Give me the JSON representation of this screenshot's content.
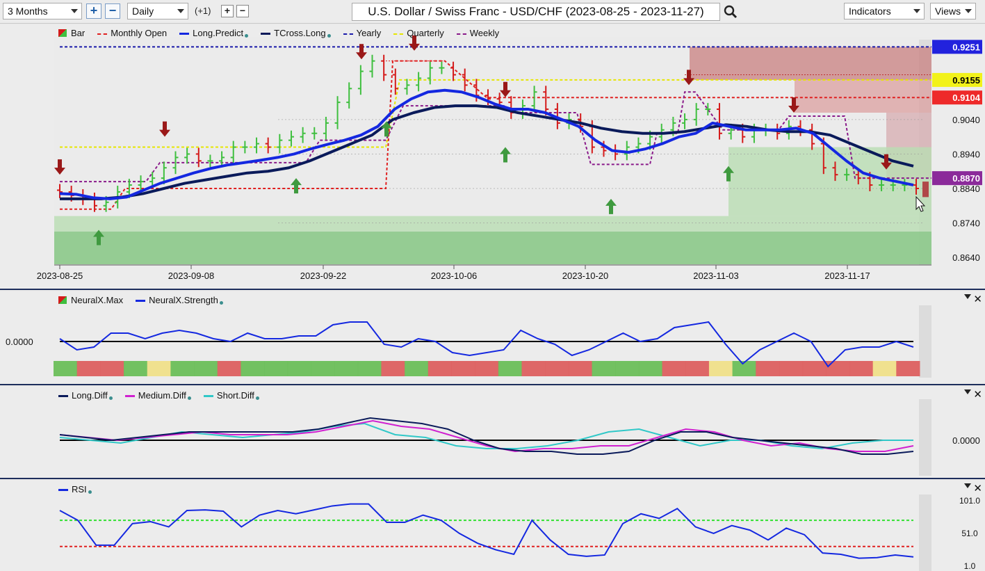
{
  "toolbar": {
    "period": "3 Months",
    "interval": "Daily",
    "step": "(+1)",
    "title": "U.S. Dollar / Swiss Franc - USD/CHF (2023-08-25 - 2023-11-27)",
    "indicators": "Indicators",
    "views": "Views"
  },
  "colors": {
    "up_bar": "#3fbf3f",
    "down_bar": "#d41a1a",
    "long_predict": "#1428e0",
    "tcross_long": "#0a1a5a",
    "yearly": "#1a1aaa",
    "quarterly": "#e6e600",
    "weekly": "#8a1a8a",
    "monthly_open": "#e02020"
  },
  "price_panel": {
    "legend": [
      {
        "label": "Bar",
        "icon": "bar-icon"
      },
      {
        "label": "Monthly Open",
        "style": "dashed",
        "color": "#e02020"
      },
      {
        "label": "Long.Predict",
        "style": "solid",
        "color": "#1428e0",
        "dot": true
      },
      {
        "label": "TCross.Long",
        "style": "solid",
        "color": "#0a1a5a",
        "dot": true
      },
      {
        "label": "Yearly",
        "style": "dashed",
        "color": "#1a1aaa"
      },
      {
        "label": "Quarterly",
        "style": "dashed",
        "color": "#e6e600"
      },
      {
        "label": "Weekly",
        "style": "dashed",
        "color": "#8a1a8a"
      }
    ],
    "y_ticks": [
      "0.9040",
      "0.8940",
      "0.8840",
      "0.8740",
      "0.8640"
    ],
    "x_ticks": [
      "2023-08-25",
      "2023-09-08",
      "2023-09-22",
      "2023-10-06",
      "2023-10-20",
      "2023-11-03",
      "2023-11-17"
    ],
    "price_labels": [
      {
        "value": "0.9251",
        "color": "#2222dd",
        "text_color": "#ffffff"
      },
      {
        "value": "0.9155",
        "color": "#f2f21a",
        "text_color": "#000000"
      },
      {
        "value": "0.9104",
        "color": "#ee2a2a",
        "text_color": "#ffffff"
      },
      {
        "value": "0.8870",
        "color": "#8b2a9a",
        "text_color": "#ffffff"
      }
    ]
  },
  "neurax_panel": {
    "legend": [
      {
        "label": "NeuralX.Max",
        "icon": "neuralx-max-icon"
      },
      {
        "label": "NeuralX.Strength",
        "color": "#1428e0",
        "dot": true
      }
    ],
    "zero_label": "0.0000"
  },
  "diff_panel": {
    "legend": [
      {
        "label": "Long.Diff",
        "color": "#0a1a5a",
        "dot": true
      },
      {
        "label": "Medium.Diff",
        "color": "#d020d0",
        "dot": true
      },
      {
        "label": "Short.Diff",
        "color": "#30c8c8",
        "dot": true
      }
    ],
    "zero_label": "0.0000"
  },
  "rsi_panel": {
    "legend": [
      {
        "label": "RSI",
        "color": "#1428e0",
        "dot": true
      }
    ],
    "y_ticks": [
      "101.0",
      "51.0",
      "1.0"
    ]
  },
  "chart_data": [
    {
      "type": "bar",
      "title": "U.S. Dollar / Swiss Franc - USD/CHF (2023-08-25 - 2023-11-27)",
      "x_start": "2023-08-25",
      "x_end": "2023-11-27",
      "ylim": [
        0.862,
        0.928
      ],
      "y_ticks": [
        0.904,
        0.894,
        0.884,
        0.874,
        0.864
      ],
      "levels": {
        "yearly": 0.9251,
        "quarterly": 0.9155,
        "monthly_open": 0.9104,
        "weekly": 0.887
      },
      "closes": [
        0.883,
        0.882,
        0.881,
        0.879,
        0.88,
        0.883,
        0.885,
        0.886,
        0.887,
        0.89,
        0.893,
        0.894,
        0.892,
        0.892,
        0.893,
        0.896,
        0.896,
        0.897,
        0.896,
        0.898,
        0.899,
        0.9,
        0.9,
        0.903,
        0.909,
        0.913,
        0.918,
        0.921,
        0.917,
        0.913,
        0.914,
        0.916,
        0.919,
        0.919,
        0.917,
        0.914,
        0.911,
        0.91,
        0.909,
        0.906,
        0.908,
        0.912,
        0.907,
        0.903,
        0.904,
        0.902,
        0.896,
        0.895,
        0.894,
        0.896,
        0.897,
        0.899,
        0.901,
        0.903,
        0.904,
        0.907,
        0.907,
        0.9,
        0.901,
        0.899,
        0.901,
        0.901,
        0.9,
        0.902,
        0.901,
        0.897,
        0.89,
        0.888,
        0.888,
        0.887,
        0.885,
        0.885,
        0.885,
        0.885,
        0.884
      ],
      "series": [
        {
          "name": "Long.Predict",
          "values": [
            0.8825,
            0.8823,
            0.8813,
            0.881,
            0.8815,
            0.8835,
            0.8855,
            0.887,
            0.8885,
            0.8898,
            0.8908,
            0.8915,
            0.8922,
            0.893,
            0.894,
            0.8955,
            0.8968,
            0.898,
            0.8995,
            0.902,
            0.907,
            0.91,
            0.912,
            0.9125,
            0.912,
            0.9105,
            0.9085,
            0.907,
            0.907,
            0.906,
            0.904,
            0.902,
            0.898,
            0.895,
            0.8945,
            0.8955,
            0.897,
            0.899,
            0.9,
            0.903,
            0.902,
            0.901,
            0.901,
            0.901,
            0.9015,
            0.9,
            0.896,
            0.892,
            0.8885,
            0.887,
            0.886,
            0.885
          ]
        },
        {
          "name": "TCross.Long",
          "values": [
            0.881,
            0.881,
            0.881,
            0.8815,
            0.8825,
            0.884,
            0.8855,
            0.8865,
            0.8875,
            0.8885,
            0.889,
            0.89,
            0.892,
            0.8945,
            0.897,
            0.8995,
            0.904,
            0.906,
            0.9075,
            0.908,
            0.908,
            0.9075,
            0.906,
            0.905,
            0.904,
            0.903,
            0.9015,
            0.9005,
            0.9,
            0.9,
            0.9005,
            0.9015,
            0.9025,
            0.902,
            0.901,
            0.9005,
            0.9005,
            0.8995,
            0.897,
            0.8945,
            0.892,
            0.8905
          ]
        }
      ]
    },
    {
      "type": "line",
      "title": "NeuralX.Strength",
      "series": [
        {
          "name": "NeuralX.Strength",
          "values": [
            0.1,
            -0.3,
            -0.2,
            0.3,
            0.3,
            0.1,
            0.3,
            0.4,
            0.3,
            0.1,
            0.0,
            0.3,
            0.1,
            0.1,
            0.2,
            0.2,
            0.6,
            0.7,
            0.7,
            -0.1,
            -0.2,
            0.1,
            0.0,
            -0.4,
            -0.5,
            -0.4,
            -0.3,
            0.4,
            0.1,
            -0.1,
            -0.5,
            -0.3,
            0.0,
            0.3,
            0.0,
            0.1,
            0.5,
            0.6,
            0.7,
            -0.1,
            -0.8,
            -0.3,
            0.0,
            0.3,
            0.0,
            -0.9,
            -0.3,
            -0.2,
            -0.2,
            0.0,
            -0.2
          ]
        },
        {
          "name": "NeuralX.Max",
          "values": [
            "g",
            "r",
            "r",
            "g",
            "y",
            "g",
            "g",
            "r",
            "g",
            "g",
            "g",
            "g",
            "g",
            "g",
            "r",
            "g",
            "r",
            "r",
            "r",
            "g",
            "r",
            "r",
            "r",
            "g",
            "g",
            "g",
            "r",
            "r",
            "y",
            "g",
            "r",
            "r",
            "r",
            "r",
            "r",
            "y",
            "r"
          ]
        }
      ]
    },
    {
      "type": "line",
      "title": "Diff",
      "series": [
        {
          "name": "Long.Diff",
          "values": [
            0.2,
            0.1,
            0.0,
            0.1,
            0.2,
            0.3,
            0.3,
            0.3,
            0.3,
            0.3,
            0.4,
            0.6,
            0.8,
            0.7,
            0.6,
            0.4,
            0.0,
            -0.3,
            -0.4,
            -0.4,
            -0.5,
            -0.5,
            -0.4,
            0.0,
            0.3,
            0.3,
            0.1,
            0.0,
            -0.1,
            -0.2,
            -0.3,
            -0.5,
            -0.5,
            -0.4
          ]
        },
        {
          "name": "Medium.Diff",
          "values": [
            0.2,
            0.1,
            0.0,
            0.1,
            0.2,
            0.3,
            0.2,
            0.2,
            0.2,
            0.3,
            0.5,
            0.7,
            0.5,
            0.4,
            0.1,
            -0.2,
            -0.4,
            -0.3,
            -0.3,
            -0.2,
            -0.2,
            0.1,
            0.4,
            0.3,
            0.0,
            -0.2,
            -0.1,
            -0.3,
            -0.4,
            -0.4,
            -0.2
          ]
        },
        {
          "name": "Short.Diff",
          "values": [
            0.1,
            0.0,
            -0.1,
            0.1,
            0.3,
            0.2,
            0.1,
            0.2,
            0.3,
            0.5,
            0.6,
            0.2,
            0.1,
            -0.2,
            -0.3,
            -0.3,
            -0.2,
            0.0,
            0.3,
            0.4,
            0.1,
            -0.2,
            0.0,
            0.0,
            -0.2,
            -0.3,
            -0.1,
            0.0,
            0.0
          ]
        }
      ]
    },
    {
      "type": "line",
      "title": "RSI",
      "ylim": [
        1,
        101
      ],
      "y_ticks": [
        101,
        51,
        1
      ],
      "series": [
        {
          "name": "RSI",
          "values": [
            85,
            70,
            32,
            32,
            65,
            68,
            60,
            85,
            86,
            84,
            60,
            78,
            85,
            80,
            86,
            92,
            95,
            95,
            67,
            67,
            78,
            70,
            50,
            35,
            25,
            18,
            70,
            40,
            18,
            15,
            17,
            65,
            80,
            73,
            88,
            60,
            50,
            62,
            55,
            40,
            58,
            48,
            20,
            18,
            12,
            13,
            17,
            14
          ]
        }
      ]
    }
  ]
}
